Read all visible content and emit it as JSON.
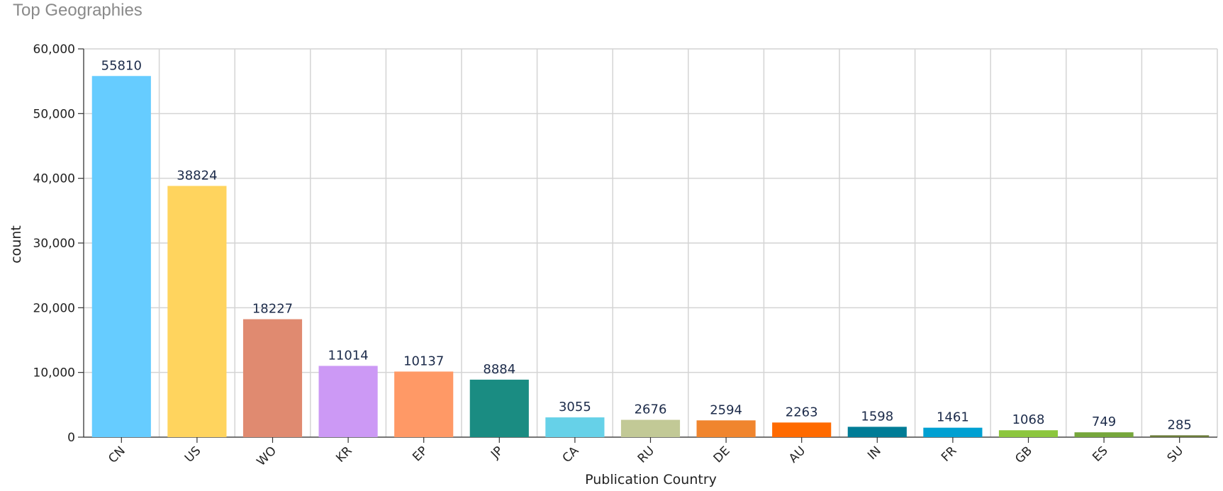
{
  "header": {
    "title": "Top Geographies"
  },
  "chart_data": {
    "type": "bar",
    "title": "Top Geographies",
    "xlabel": "Publication Country",
    "ylabel": "count",
    "ylim": [
      0,
      60000
    ],
    "yticks": [
      0,
      10000,
      20000,
      30000,
      40000,
      50000,
      60000
    ],
    "ytick_labels": [
      "0",
      "10,000",
      "20,000",
      "30,000",
      "40,000",
      "50,000",
      "60,000"
    ],
    "grid": true,
    "categories": [
      "CN",
      "US",
      "WO",
      "KR",
      "EP",
      "JP",
      "CA",
      "RU",
      "DE",
      "AU",
      "IN",
      "FR",
      "GB",
      "ES",
      "SU"
    ],
    "values": [
      55810,
      38824,
      18227,
      11014,
      10137,
      8884,
      3055,
      2676,
      2594,
      2263,
      1598,
      1461,
      1068,
      749,
      285
    ],
    "colors": [
      "#66ccff",
      "#ffd45e",
      "#e08a70",
      "#cc99f5",
      "#ff9966",
      "#1a8c82",
      "#66d1e8",
      "#c2c996",
      "#f0852e",
      "#ff6a00",
      "#007c96",
      "#00a0d2",
      "#8cc63e",
      "#76a73c",
      "#6b7c3a"
    ]
  }
}
